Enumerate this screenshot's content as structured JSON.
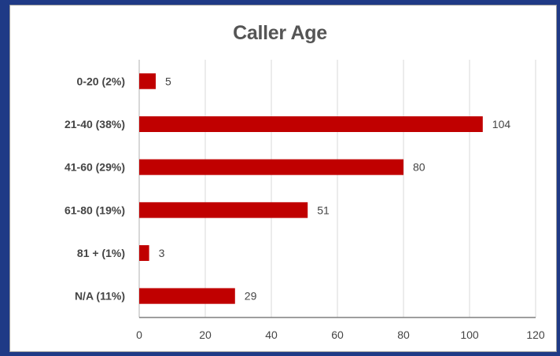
{
  "chart_data": {
    "type": "bar",
    "orientation": "horizontal",
    "title": "Caller Age",
    "xlabel": "",
    "ylabel": "",
    "categories": [
      "0-20  (2%)",
      "21-40  (38%)",
      "41-60  (29%)",
      "61-80  (19%)",
      "81 + (1%)",
      "N/A  (11%)"
    ],
    "values": [
      5,
      104,
      80,
      51,
      3,
      29
    ],
    "xlim": [
      0,
      120
    ],
    "xticks": [
      0,
      20,
      40,
      60,
      80,
      100,
      120
    ],
    "grid": true,
    "legend": "none",
    "bar_color": "#c00000"
  }
}
